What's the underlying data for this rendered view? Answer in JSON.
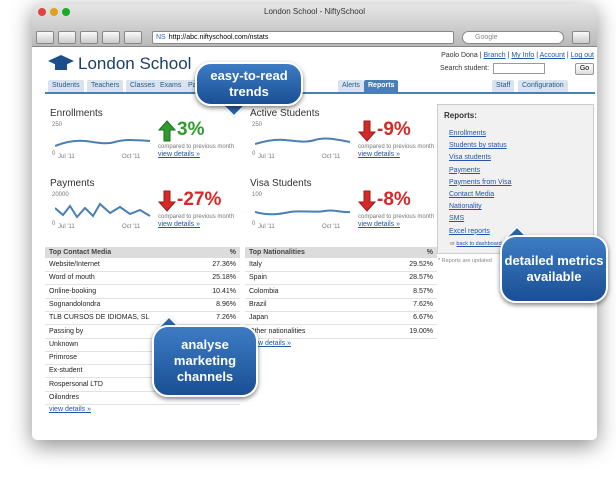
{
  "window": {
    "title": "London School - NiftySchool",
    "favicon": "NS",
    "url": "http://abc.niftyschool.com/nstats",
    "search_placeholder": "Google"
  },
  "header": {
    "school": "London School",
    "user": "Paolo Dona",
    "links": [
      "Branch",
      "My Info",
      "Account",
      "Log out"
    ],
    "search_label": "Search student:",
    "search_button": "Go"
  },
  "nav": {
    "left": [
      "Students",
      "Teachers",
      "Classes",
      "Exams",
      "Pa",
      "Alerts",
      "Reports"
    ],
    "right": [
      "Staff",
      "Configuration"
    ],
    "active": "Reports"
  },
  "widgets": [
    {
      "title": "Enrollments",
      "ymax": "250",
      "ymin": "0",
      "x_start": "Jul '11",
      "x_end": "Oct '11",
      "change": "3%",
      "trend": "up",
      "note": "compared to previous month",
      "link": "view details »"
    },
    {
      "title": "Active Students",
      "ymax": "250",
      "ymin": "0",
      "x_start": "Jul '11",
      "x_end": "Oct '11",
      "change": "-9%",
      "trend": "down",
      "note": "compared to previous month",
      "link": "view details »"
    },
    {
      "title": "Payments",
      "ymax": "20000",
      "ymin": "0",
      "x_start": "Jul '11",
      "x_end": "Oct '11",
      "change": "-27%",
      "trend": "down",
      "note": "compared to previous month",
      "link": "view details »"
    },
    {
      "title": "Visa Students",
      "ymax": "100",
      "ymin": "0",
      "x_start": "Jul '11",
      "x_end": "Oct '11",
      "change": "-8%",
      "trend": "down",
      "note": "compared to previous month",
      "link": "view details »"
    }
  ],
  "reports": {
    "title": "Reports:",
    "links": [
      "Enrollments",
      "Students by status",
      "Visa students",
      "Payments",
      "Payments from Visa",
      "Contact Media",
      "Nationality",
      "SMS",
      "Excel reports"
    ],
    "back_prefix": "or",
    "back_link": "back to dashboard",
    "footnote": "* Reports are updated"
  },
  "tables": [
    {
      "headers": [
        "Top Contact Media",
        "%"
      ],
      "rows": [
        [
          "Website/Internet",
          "27.36%"
        ],
        [
          "Word of mouth",
          "25.18%"
        ],
        [
          "Online-booking",
          "10.41%"
        ],
        [
          "Sognandolondra",
          "8.96%"
        ],
        [
          "TLB CURSOS DE IDIOMAS, SL",
          "7.26%"
        ],
        [
          "Passing by"
        ],
        [
          "Unknown"
        ],
        [
          "Primrose"
        ],
        [
          "Ex-student"
        ],
        [
          "Rospersonal LTD"
        ],
        [
          "Oilondres"
        ]
      ],
      "link": "view details »"
    },
    {
      "headers": [
        "Top Nationalities",
        "%"
      ],
      "rows": [
        [
          "Italy",
          "29.52%"
        ],
        [
          "Spain",
          "28.57%"
        ],
        [
          "Colombia",
          "8.57%"
        ],
        [
          "Brazil",
          "7.62%"
        ],
        [
          "Japan",
          "6.67%"
        ],
        [
          "Other nationalities",
          "19.00%"
        ]
      ],
      "link": "view details »"
    }
  ],
  "callouts": [
    "easy-to-read trends",
    "detailed metrics available",
    "analyse marketing channels"
  ]
}
